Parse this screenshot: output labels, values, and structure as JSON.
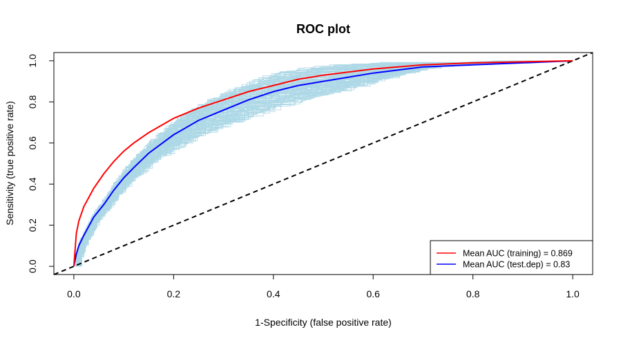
{
  "chart_data": {
    "type": "line",
    "title": "ROC plot",
    "xlabel": "1-Specificity (false positive rate)",
    "ylabel": "Sensitivity (true positive rate)",
    "xlim": [
      -0.04,
      1.04
    ],
    "ylim": [
      -0.04,
      1.04
    ],
    "xticks": [
      0.0,
      0.2,
      0.4,
      0.6,
      0.8,
      1.0
    ],
    "yticks": [
      0.0,
      0.2,
      0.4,
      0.6,
      0.8,
      1.0
    ],
    "xtick_labels": [
      "0.0",
      "0.2",
      "0.4",
      "0.6",
      "0.8",
      "1.0"
    ],
    "ytick_labels": [
      "0.0",
      "0.2",
      "0.4",
      "0.6",
      "0.8",
      "1.0"
    ],
    "grid": false,
    "legend_position": "bottom-right",
    "colors": {
      "training": "#ff0000",
      "test": "#0000ff",
      "replicates_training": "#ffc0cb",
      "replicates_test": "#add8e6",
      "reference": "#000000"
    },
    "series": [
      {
        "name": "Mean AUC (training) = 0.869",
        "color": "#ff0000",
        "x": [
          0,
          0.005,
          0.01,
          0.02,
          0.04,
          0.06,
          0.08,
          0.1,
          0.12,
          0.15,
          0.2,
          0.25,
          0.3,
          0.35,
          0.4,
          0.45,
          0.5,
          0.6,
          0.7,
          0.8,
          0.9,
          1.0
        ],
        "y": [
          0,
          0.16,
          0.22,
          0.29,
          0.38,
          0.45,
          0.51,
          0.56,
          0.6,
          0.65,
          0.72,
          0.77,
          0.81,
          0.85,
          0.88,
          0.91,
          0.93,
          0.96,
          0.98,
          0.99,
          0.995,
          1.0
        ]
      },
      {
        "name": "Mean AUC (test.dep) = 0.83",
        "color": "#0000ff",
        "x": [
          0,
          0.005,
          0.01,
          0.02,
          0.04,
          0.06,
          0.08,
          0.1,
          0.12,
          0.15,
          0.2,
          0.25,
          0.3,
          0.35,
          0.4,
          0.45,
          0.5,
          0.6,
          0.7,
          0.8,
          0.9,
          1.0
        ],
        "y": [
          0,
          0.06,
          0.1,
          0.15,
          0.24,
          0.3,
          0.37,
          0.43,
          0.48,
          0.55,
          0.64,
          0.71,
          0.76,
          0.81,
          0.85,
          0.88,
          0.9,
          0.94,
          0.97,
          0.98,
          0.99,
          1.0
        ]
      },
      {
        "color": "#000000",
        "style": "dashed",
        "x": [
          -0.04,
          1.04
        ],
        "y": [
          -0.04,
          1.04
        ]
      }
    ],
    "replicates": {
      "color": "#add8e6",
      "count": 100
    }
  }
}
